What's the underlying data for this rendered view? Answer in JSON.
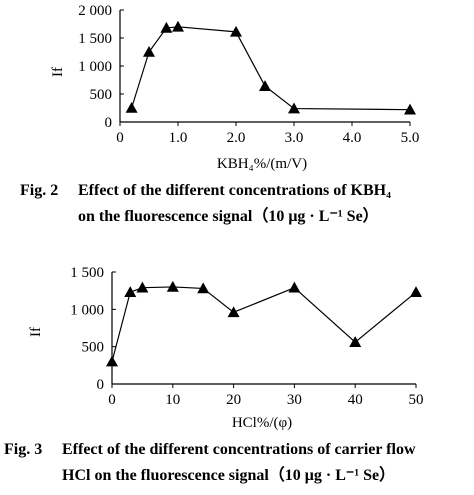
{
  "figures": [
    {
      "caption_number": "Fig. 2",
      "caption_line1": "Effect of the different concentrations of KBH₄",
      "caption_line2": "on the fluorescence signal（10 μg · L⁻¹ Se）"
    },
    {
      "caption_number": "Fig. 3",
      "caption_line1": "Effect of the different concentrations of carrier flow",
      "caption_line2": "HCl on the fluorescence signal（10 μg · L⁻¹ Se）"
    }
  ],
  "chart_data": [
    {
      "type": "line",
      "marker": "triangle",
      "color": "#000000",
      "ylabel": "If",
      "xlabel": "KBH₄%/(m/V)",
      "xlim": [
        0,
        5.0
      ],
      "ylim": [
        0,
        2000
      ],
      "xticks": [
        "0",
        "1.0",
        "2.0",
        "3.0",
        "4.0",
        "5.0"
      ],
      "yticks": [
        "0",
        "500",
        "1 000",
        "1 500",
        "2 000"
      ],
      "x": [
        0.2,
        0.5,
        0.8,
        1.0,
        2.0,
        2.5,
        3.0,
        5.0
      ],
      "y": [
        250,
        1250,
        1680,
        1700,
        1610,
        640,
        240,
        220
      ],
      "grid": false
    },
    {
      "type": "line",
      "marker": "triangle",
      "color": "#000000",
      "ylabel": "If",
      "xlabel": "HCl%/(φ)",
      "xlim": [
        0,
        50
      ],
      "ylim": [
        0,
        1500
      ],
      "xticks": [
        "0",
        "10",
        "20",
        "30",
        "40",
        "50"
      ],
      "yticks": [
        "0",
        "500",
        "1 000",
        "1 500"
      ],
      "x": [
        0,
        3,
        5,
        10,
        15,
        20,
        30,
        40,
        50
      ],
      "y": [
        300,
        1230,
        1290,
        1300,
        1280,
        960,
        1290,
        560,
        1230
      ],
      "grid": false
    }
  ]
}
